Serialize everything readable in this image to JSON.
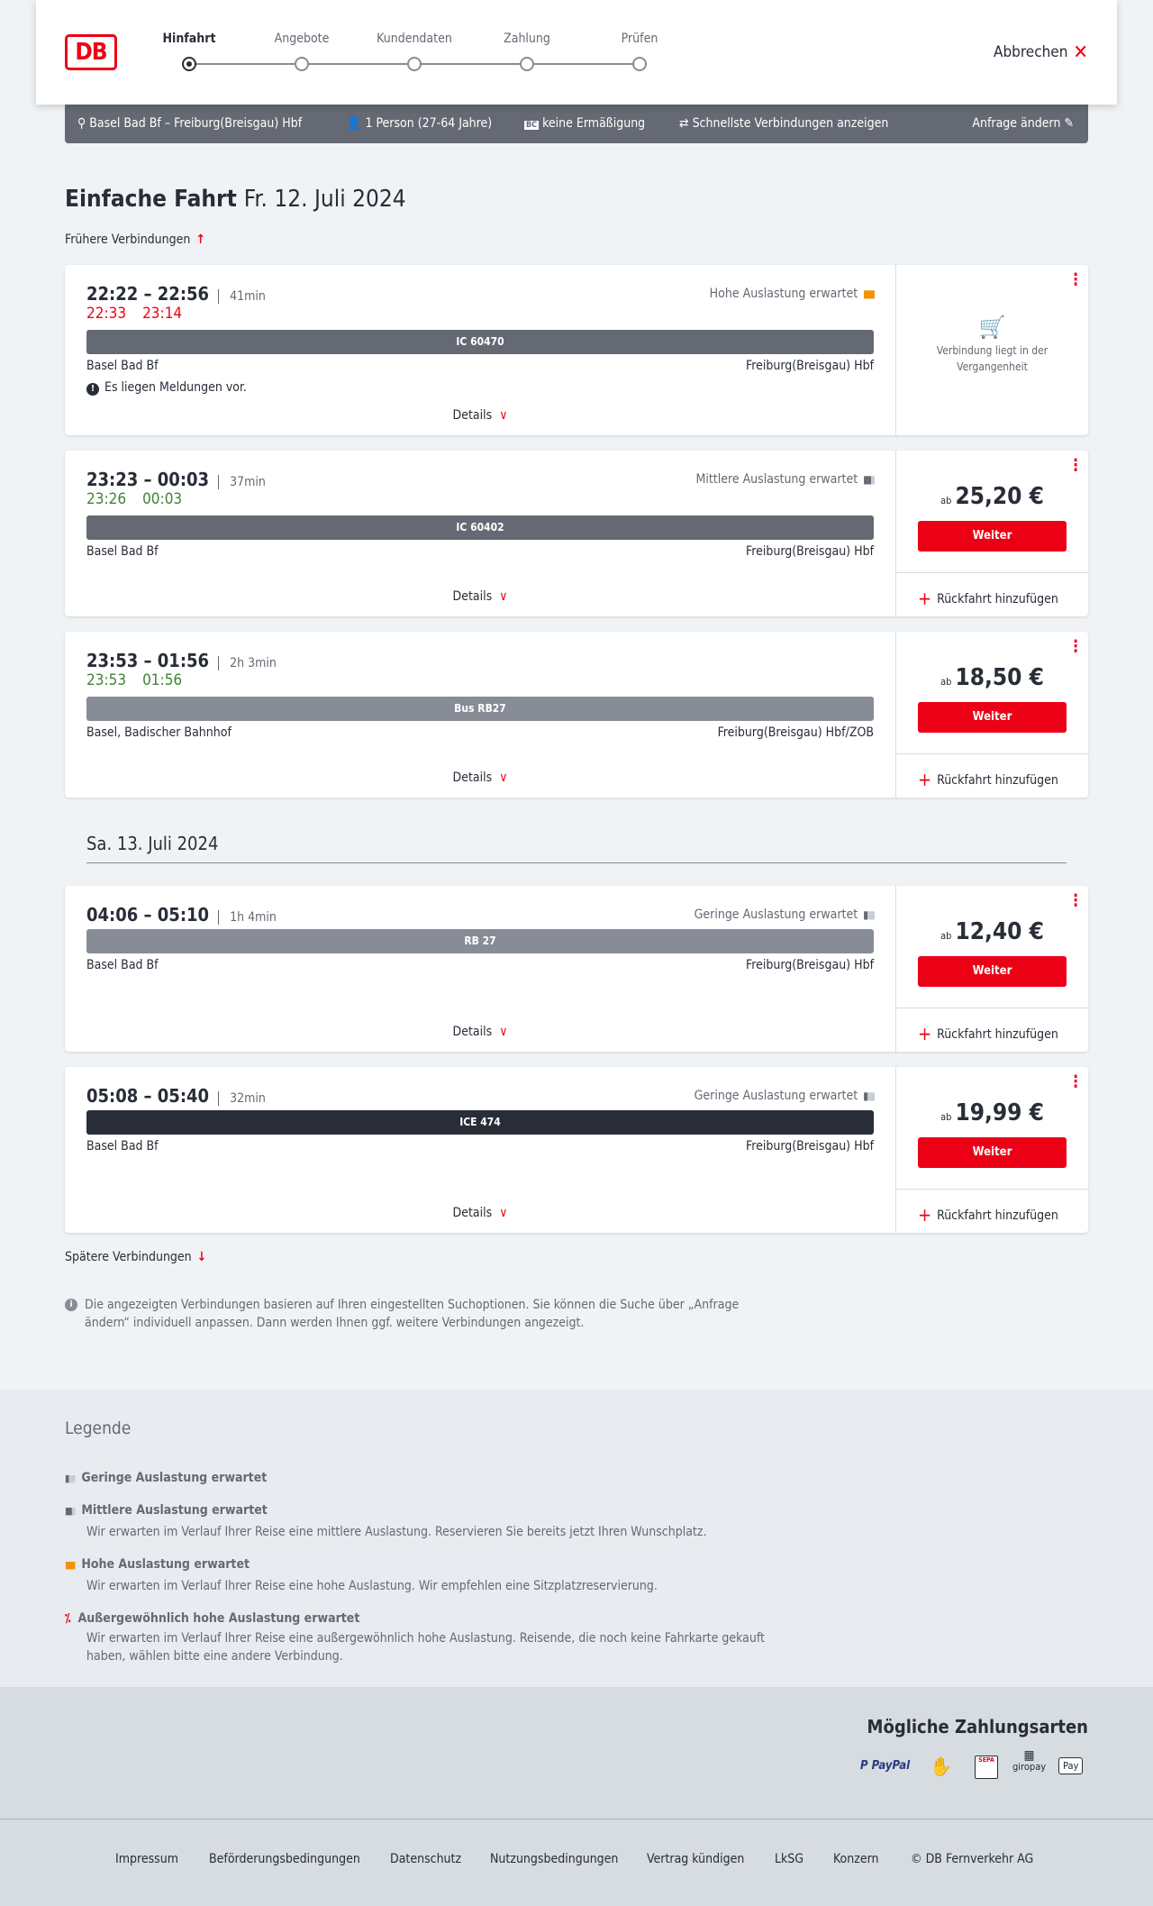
{
  "header": {
    "logo": "DB",
    "steps": [
      "Hinfahrt",
      "Angebote",
      "Kundendaten",
      "Zahlung",
      "Prüfen"
    ],
    "active_step": 0,
    "cancel": "Abbrechen"
  },
  "query": {
    "route": "Basel Bad Bf – Freiburg(Breisgau) Hbf",
    "persons": "1 Person (27-64 Jahre)",
    "discount": "keine Ermäßigung",
    "fastest": "Schnellste Verbindungen anzeigen",
    "change": "Anfrage ändern"
  },
  "title": {
    "type": "Einfache Fahrt",
    "date": "Fr. 12. Juli 2024"
  },
  "earlier": "Frühere Verbindungen",
  "later": "Spätere Verbindungen",
  "date2": "Sa. 13. Juli 2024",
  "details_label": "Details",
  "weiter": "Weiter",
  "return_label": "Rückfahrt hinzufügen",
  "price_prefix": "ab",
  "past_label": "Verbindung liegt in der Vergangenheit",
  "connections": [
    {
      "times": "22:22 – 22:56",
      "duration": "41min",
      "rt_dep": "22:33",
      "rt_arr": "23:14",
      "rt_status": "delayed",
      "load": "Hohe Auslastung erwartet",
      "train": "IC 60470",
      "train_color": "#646973",
      "from": "Basel Bad Bf",
      "to": "Freiburg(Breisgau) Hbf",
      "message": "Es liegen Meldungen vor."
    },
    {
      "times": "23:23 – 00:03",
      "duration": "37min",
      "rt_dep": "23:26",
      "rt_arr": "00:03",
      "rt_status": "on-time",
      "load": "Mittlere Auslastung erwartet",
      "train": "IC 60402",
      "train_color": "#646973",
      "from": "Basel Bad Bf",
      "to": "Freiburg(Breisgau) Hbf",
      "price": "25,20 €"
    },
    {
      "times": "23:53 – 01:56",
      "duration": "2h 3min",
      "rt_dep": "23:53",
      "rt_arr": "01:56",
      "rt_status": "on-time",
      "load": "",
      "train": "Bus RB27",
      "train_color": "#878c96",
      "from": "Basel, Badischer Bahnhof",
      "to": "Freiburg(Breisgau) Hbf/ZOB",
      "price": "18,50 €"
    },
    {
      "times": "04:06 – 05:10",
      "duration": "1h 4min",
      "load": "Geringe Auslastung erwartet",
      "train": "RB 27",
      "train_color": "#878c96",
      "from": "Basel Bad Bf",
      "to": "Freiburg(Breisgau) Hbf",
      "price": "12,40 €"
    },
    {
      "times": "05:08 – 05:40",
      "duration": "32min",
      "load": "Geringe Auslastung erwartet",
      "train": "ICE 474",
      "train_color": "#282d37",
      "from": "Basel Bad Bf",
      "to": "Freiburg(Breisgau) Hbf",
      "price": "19,99 €"
    }
  ],
  "note": "Die angezeigten Verbindungen basieren auf Ihren eingestellten Suchoptionen. Sie können die Suche über „Anfrage ändern“ individuell anpassen. Dann werden Ihnen ggf. weitere Verbindungen angezeigt.",
  "legend": {
    "title": "Legende",
    "items": [
      {
        "label": "Geringe Auslastung erwartet",
        "text": ""
      },
      {
        "label": "Mittlere Auslastung erwartet",
        "text": "Wir erwarten im Verlauf Ihrer Reise eine mittlere Auslastung. Reservieren Sie bereits jetzt Ihren Wunschplatz."
      },
      {
        "label": "Hohe Auslastung erwartet",
        "text": "Wir erwarten im Verlauf Ihrer Reise eine hohe Auslastung. Wir empfehlen eine Sitzplatzreservierung."
      },
      {
        "label": "Außergewöhnlich hohe Auslastung erwartet",
        "text": "Wir erwarten im Verlauf Ihrer Reise eine außergewöhnlich hohe Auslastung. Reisende, die noch keine Fahrkarte gekauft haben, wählen bitte eine andere Verbindung."
      }
    ]
  },
  "payment": {
    "title": "Mögliche Zahlungsarten",
    "methods": [
      "PayPal",
      "Kreditkarte",
      "SEPA",
      "giropay",
      "Pay"
    ]
  },
  "footer": [
    "Impressum",
    "Beförderungsbedingungen",
    "Datenschutz",
    "Nutzungsbedingungen",
    "Vertrag kündigen",
    "LkSG",
    "Konzern",
    "© DB Fernverkehr AG"
  ],
  "colors": {
    "accent": "#ec0016",
    "delay": "#ec0016",
    "ontime": "#408335",
    "high_load": "#f39200"
  }
}
